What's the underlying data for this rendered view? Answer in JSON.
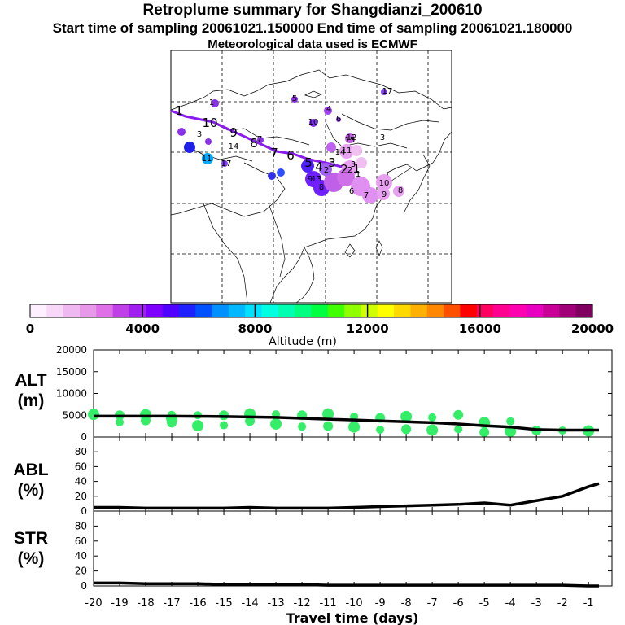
{
  "title": {
    "line1": "Retroplume summary for Shangdianzi_200610",
    "line2": "Start time of sampling 20061021.150000     End time of sampling 20061021.180000",
    "line3": "Meteorological data used is ECMWF"
  },
  "colorbar": {
    "ticks": [
      "0",
      "4000",
      "8000",
      "12000",
      "16000",
      "20000"
    ],
    "label": "Altitude (m)",
    "colors": [
      "#fff0ff",
      "#f8d8f8",
      "#f0b8f0",
      "#e898e8",
      "#e070e8",
      "#c040e8",
      "#a020f0",
      "#8000ff",
      "#5000ff",
      "#2020ff",
      "#0050ff",
      "#0090ff",
      "#00b8ff",
      "#00e0ff",
      "#00ffe0",
      "#00ffb0",
      "#00ff80",
      "#00ff40",
      "#40ff00",
      "#90ff00",
      "#d0ff00",
      "#ffff00",
      "#ffd800",
      "#ffb000",
      "#ff8800",
      "#ff5000",
      "#ff0000",
      "#ff0060",
      "#ff0090",
      "#ff00b0",
      "#e800c0",
      "#c80098",
      "#a00078",
      "#800060"
    ]
  },
  "map": {
    "plume_points": [
      {
        "label": "1",
        "color": "#8a30e8"
      },
      {
        "label": "2",
        "color": "#8a30e8"
      },
      {
        "label": "3",
        "color": "#c050e0"
      },
      {
        "label": "4",
        "color": "#7020ff"
      },
      {
        "label": "5",
        "color": "#8a30e8"
      },
      {
        "label": "6",
        "color": "#9a40f0"
      },
      {
        "label": "7",
        "color": "#b050e0"
      },
      {
        "label": "8",
        "color": "#7030f0"
      },
      {
        "label": "9",
        "color": "#7a30ee"
      },
      {
        "label": "10",
        "color": "#8a30e8"
      },
      {
        "label": "11",
        "color": "#8a30e8"
      },
      {
        "label": "12",
        "color": "#c060e0"
      },
      {
        "label": "13",
        "color": "#c060e0"
      },
      {
        "label": "14",
        "color": "#d070e8"
      },
      {
        "label": "15",
        "color": "#d070e8"
      },
      {
        "label": "17",
        "color": "#6020ff"
      },
      {
        "label": "2",
        "color": "#b060f0"
      },
      {
        "label": "10",
        "color": "#c060e0"
      },
      {
        "label": "9",
        "color": "#d080e8"
      },
      {
        "label": "8",
        "color": "#e090f0"
      },
      {
        "label": "11",
        "color": "#00a8ff"
      },
      {
        "label": "17",
        "color": "#8040f0"
      },
      {
        "label": "3",
        "color": "#f0c0f0"
      },
      {
        "label": "6",
        "color": "#e0a0f0"
      },
      {
        "label": "7",
        "color": "#e0a0f0"
      },
      {
        "label": "3",
        "color": "#f0c0f0"
      },
      {
        "label": "1",
        "color": "#e0a0f0"
      },
      {
        "label": "14",
        "color": "#8040f0"
      }
    ],
    "trajectory_labels": [
      "1",
      "10",
      "9",
      "8",
      "7",
      "6",
      "5",
      "4",
      "3",
      "2",
      "1"
    ]
  },
  "chart_data": [
    {
      "type": "line",
      "panel": "ALT",
      "title": "ALT",
      "ylabel": "(m)",
      "ylim": [
        0,
        20000
      ],
      "yticks": [
        "0",
        "5000",
        "10000",
        "15000",
        "20000"
      ],
      "x": [
        -20,
        -19,
        -18,
        -17,
        -16,
        -15,
        -14,
        -13,
        -12,
        -11,
        -10,
        -9,
        -8,
        -7,
        -6,
        -5,
        -4,
        -3,
        -2,
        -1,
        -0.6
      ],
      "values": [
        4800,
        4800,
        4800,
        4800,
        4750,
        4700,
        4600,
        4500,
        4300,
        4100,
        3900,
        3700,
        3500,
        3300,
        3000,
        2600,
        2300,
        1700,
        1600,
        1600,
        1600
      ],
      "scatter": {
        "color": "#33ee66",
        "x": [
          -20,
          -19,
          -19,
          -18,
          -18,
          -17,
          -17,
          -17,
          -16,
          -16,
          -15,
          -15,
          -14,
          -14,
          -13,
          -13,
          -12,
          -12,
          -11,
          -11,
          -10,
          -10,
          -9,
          -9,
          -8,
          -8,
          -7,
          -7,
          -6,
          -6,
          -5,
          -5,
          -4,
          -4,
          -3,
          -2,
          -1
        ],
        "values": [
          5200,
          5000,
          3400,
          5100,
          3800,
          5100,
          4300,
          3300,
          5000,
          2600,
          5000,
          2700,
          5300,
          3700,
          5200,
          3000,
          5000,
          2400,
          5300,
          2500,
          4700,
          2300,
          4400,
          1700,
          4700,
          1800,
          4500,
          1600,
          5100,
          1800,
          3300,
          1100,
          3600,
          1300,
          1500,
          1500,
          1400
        ]
      }
    },
    {
      "type": "line",
      "panel": "ABL",
      "title": "ABL",
      "ylabel": "(%)",
      "ylim": [
        0,
        100
      ],
      "yticks": [
        "0",
        "20",
        "40",
        "60",
        "80"
      ],
      "x": [
        -20,
        -19,
        -18,
        -17,
        -16,
        -15,
        -14,
        -13,
        -12,
        -11,
        -10,
        -9,
        -8,
        -7,
        -6,
        -5,
        -4,
        -3,
        -2,
        -1,
        -0.6
      ],
      "values": [
        5,
        5,
        4,
        4,
        4,
        4,
        5,
        4,
        4,
        4,
        5,
        6,
        7,
        8,
        9,
        11,
        8,
        14,
        20,
        33,
        37
      ]
    },
    {
      "type": "line",
      "panel": "STR",
      "title": "STR",
      "ylabel": "(%)",
      "ylim": [
        0,
        100
      ],
      "yticks": [
        "0",
        "20",
        "40",
        "60",
        "80"
      ],
      "x": [
        -20,
        -19,
        -18,
        -17,
        -16,
        -15,
        -14,
        -13,
        -12,
        -11,
        -10,
        -9,
        -8,
        -7,
        -6,
        -5,
        -4,
        -3,
        -2,
        -1,
        -0.6
      ],
      "values": [
        4,
        4,
        3,
        3,
        3,
        2,
        2,
        2,
        2,
        1,
        1,
        1,
        1,
        1,
        1,
        1,
        1,
        1,
        1,
        0,
        0
      ]
    }
  ],
  "xaxis": {
    "ticks": [
      "-20",
      "-19",
      "-18",
      "-17",
      "-16",
      "-15",
      "-14",
      "-13",
      "-12",
      "-11",
      "-10",
      "-9",
      "-8",
      "-7",
      "-6",
      "-5",
      "-4",
      "-3",
      "-2",
      "-1"
    ],
    "label": "Travel time (days)",
    "range": [
      -20,
      -0.1
    ]
  }
}
